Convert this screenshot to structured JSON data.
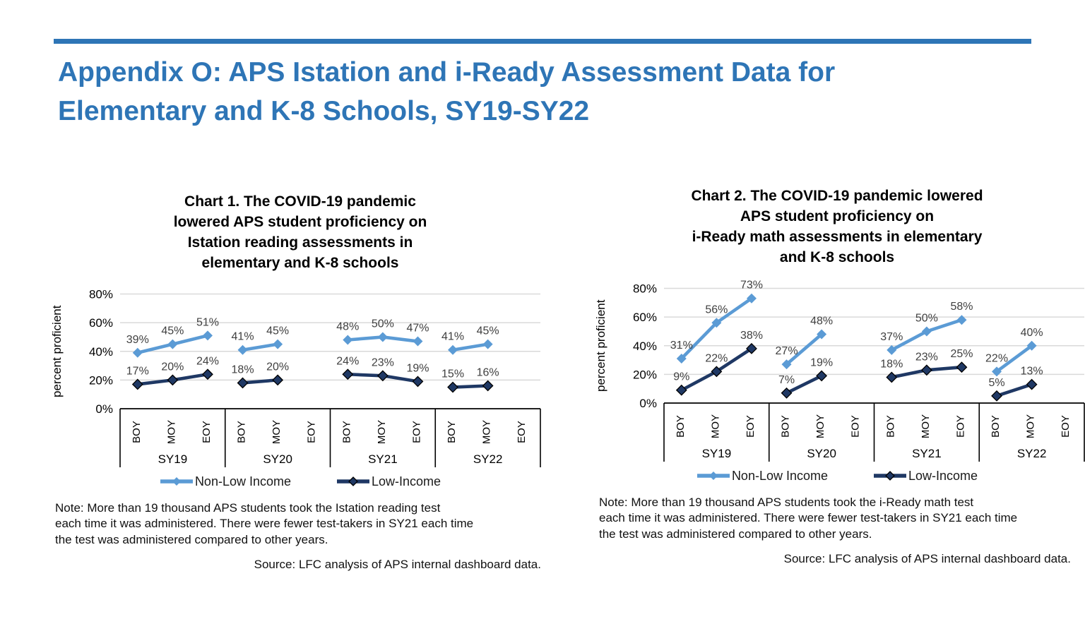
{
  "page": {
    "rule_color": "#2E75B6",
    "heading": {
      "lines": [
        "Appendix O: APS Istation and i-Ready Assessment Data for",
        "Elementary and K-8 Schools, SY19-SY22"
      ],
      "color": "#2E75B6"
    }
  },
  "colors": {
    "non_low_income": "#5B9BD5",
    "low_income": "#1F3864",
    "grid": "#D9D9D9",
    "axis": "#000000",
    "data_label": "#404040"
  },
  "chart_data": [
    {
      "type": "line",
      "title_lines": [
        "Chart 1. The COVID-19 pandemic",
        "lowered APS student proficiency on",
        "Istation reading assessments in",
        "elementary and K-8 schools"
      ],
      "ylabel": "percent proficient",
      "ylim": [
        0,
        80
      ],
      "yticks": [
        0,
        20,
        40,
        60,
        80
      ],
      "ytick_suffix": "%",
      "grid": true,
      "legend_position": "bottom",
      "groups": [
        "SY19",
        "SY20",
        "SY21",
        "SY22"
      ],
      "periods": [
        "BOY",
        "MOY",
        "EOY"
      ],
      "series": [
        {
          "name": "Non-Low Income",
          "color": "#5B9BD5",
          "marker": "diamond",
          "marker_outline": "",
          "values": [
            [
              39,
              45,
              51
            ],
            [
              41,
              45,
              null
            ],
            [
              48,
              50,
              47
            ],
            [
              41,
              45,
              null
            ]
          ]
        },
        {
          "name": "Low-Income",
          "color": "#1F3864",
          "marker": "diamond",
          "marker_outline": "#000000",
          "values": [
            [
              17,
              20,
              24
            ],
            [
              18,
              20,
              null
            ],
            [
              24,
              23,
              19
            ],
            [
              15,
              16,
              null
            ]
          ]
        }
      ],
      "note_lines": [
        "Note: More than 19 thousand APS students took the Istation reading test",
        "each time it was administered. There were fewer test-takers in SY21 each time",
        "the test was administered compared to other years."
      ],
      "source": "Source: LFC analysis of APS internal dashboard data."
    },
    {
      "type": "line",
      "title_lines": [
        "Chart 2. The COVID-19 pandemic lowered",
        "APS student proficiency on",
        "i-Ready math assessments in elementary",
        "and K-8 schools"
      ],
      "ylabel": "percent proficient",
      "ylim": [
        0,
        80
      ],
      "yticks": [
        0,
        20,
        40,
        60,
        80
      ],
      "ytick_suffix": "%",
      "grid": true,
      "legend_position": "bottom",
      "groups": [
        "SY19",
        "SY20",
        "SY21",
        "SY22"
      ],
      "periods": [
        "BOY",
        "MOY",
        "EOY"
      ],
      "series": [
        {
          "name": "Non-Low Income",
          "color": "#5B9BD5",
          "marker": "diamond",
          "marker_outline": "",
          "values": [
            [
              31,
              56,
              73
            ],
            [
              27,
              48,
              null
            ],
            [
              37,
              50,
              58
            ],
            [
              22,
              40,
              null
            ]
          ]
        },
        {
          "name": "Low-Income",
          "color": "#1F3864",
          "marker": "diamond",
          "marker_outline": "#000000",
          "values": [
            [
              9,
              22,
              38
            ],
            [
              7,
              19,
              null
            ],
            [
              18,
              23,
              25
            ],
            [
              5,
              13,
              null
            ]
          ]
        }
      ],
      "note_lines": [
        "Note: More than 19 thousand APS students took the i-Ready math test",
        "each time it was administered. There were fewer test-takers in SY21 each time",
        "the test was administered compared to other years."
      ],
      "source": "Source: LFC analysis of APS internal dashboard data."
    }
  ]
}
